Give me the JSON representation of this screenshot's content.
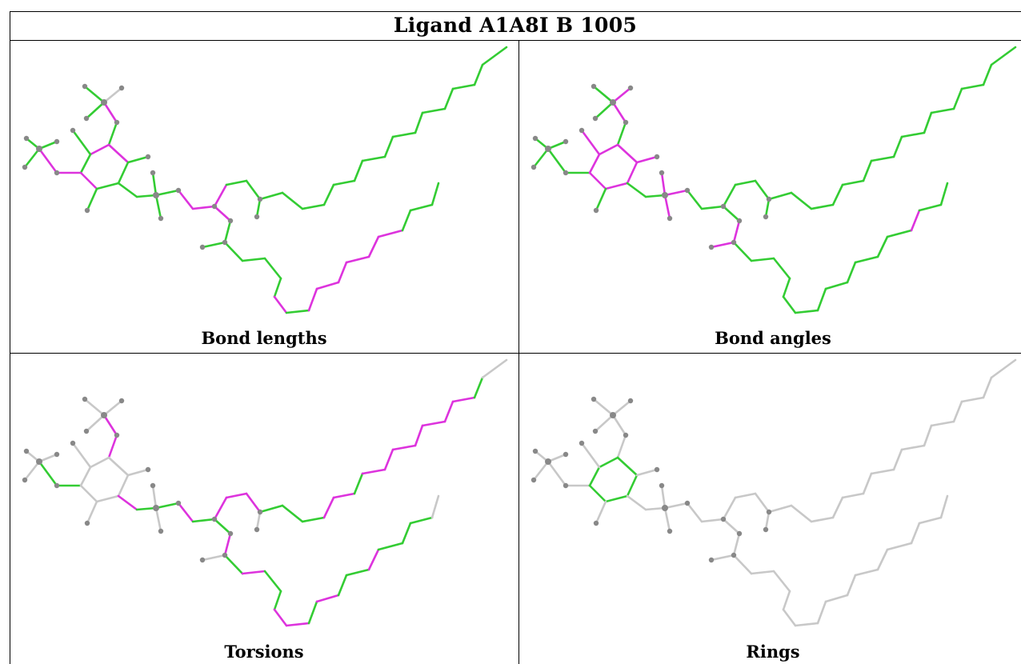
{
  "title": "Ligand A1A8I B 1005",
  "panels": [
    {
      "id": "bond-lengths",
      "caption": "Bond lengths"
    },
    {
      "id": "bond-angles",
      "caption": "Bond angles"
    },
    {
      "id": "torsions",
      "caption": "Torsions"
    },
    {
      "id": "rings",
      "caption": "Rings"
    }
  ],
  "colors": {
    "ok_bond": "#33cc33",
    "outlier_bond": "#dd33dd",
    "unassessed_bond": "#c8c8c8",
    "atom": "#888888",
    "grid_line": "#000000"
  }
}
